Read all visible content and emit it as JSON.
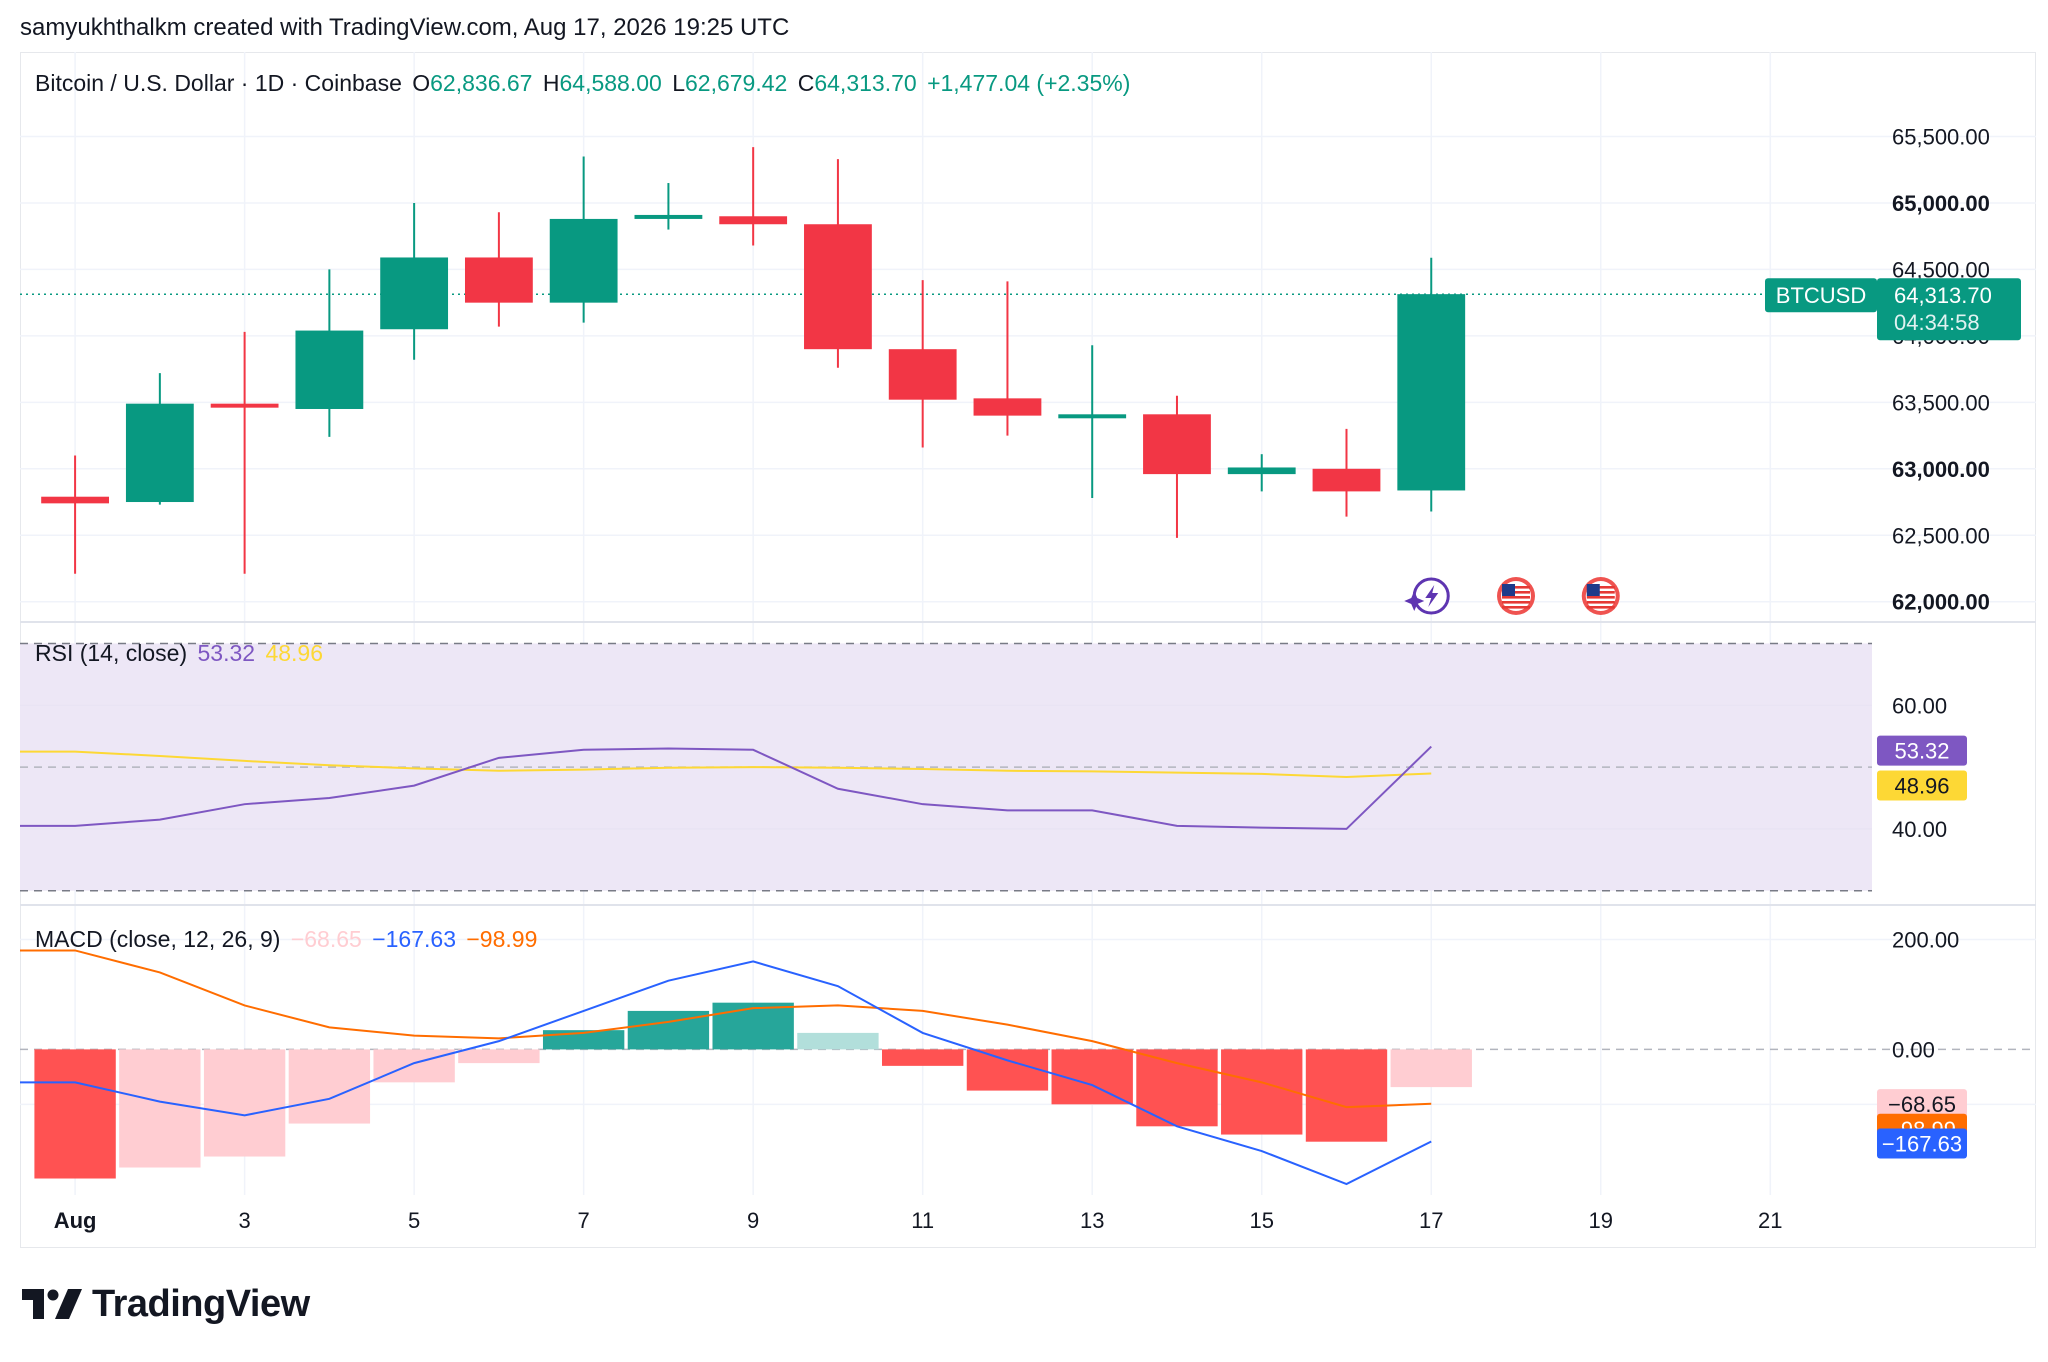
{
  "caption": "samyukhthalkm created with TradingView.com, Aug 17, 2026 19:25 UTC",
  "brand": {
    "logo_text": "TradingView",
    "logo_icon": "tradingview-logo-icon"
  },
  "colors": {
    "up": "#089981",
    "down": "#f23645",
    "rsi": "#7e57c2",
    "rsi_ma": "#fdd835",
    "macd": "#2962ff",
    "signal": "#ff6d00",
    "hist_up_strong": "#26a69a",
    "hist_up_weak": "#b2dfdb",
    "hist_down_strong": "#ff5252",
    "hist_down_weak": "#ffcdd2",
    "rsi_band": "#ede7f6"
  },
  "legend": {
    "symbol": "Bitcoin / U.S. Dollar · 1D · Coinbase",
    "o_label": "O",
    "o_value": "62,836.67",
    "h_label": "H",
    "h_value": "64,588.00",
    "l_label": "L",
    "l_value": "62,679.42",
    "c_label": "C",
    "c_value": "64,313.70",
    "change": "+1,477.04 (+2.35%)"
  },
  "price_tag": {
    "symbol": "BTCUSD",
    "price": "64,313.70",
    "countdown": "04:34:58"
  },
  "rsi_legend": {
    "title": "RSI (14, close)",
    "rsi": "53.32",
    "ma": "48.96"
  },
  "macd_legend": {
    "title": "MACD (close, 12, 26, 9)",
    "hist": "−68.65",
    "macd": "−167.63",
    "signal": "−98.99"
  },
  "event_icons": [
    "lightning-event-icon",
    "us-flag-event-icon",
    "us-flag-event-icon"
  ],
  "chart_data": [
    {
      "type": "candlestick",
      "x_ticks": [
        "Aug",
        "3",
        "5",
        "7",
        "9",
        "11",
        "13",
        "15",
        "17",
        "19",
        "21"
      ],
      "x_tick_days": [
        1,
        3,
        5,
        7,
        9,
        11,
        13,
        15,
        17,
        19,
        21
      ],
      "y_ticks": [
        "65,500.00",
        "65,000.00",
        "64,500.00",
        "64,000.00",
        "63,500.00",
        "63,000.00",
        "62,500.00",
        "62,000.00"
      ],
      "y_tick_values": [
        65500,
        65000,
        64500,
        64000,
        63500,
        63000,
        62500,
        62000
      ],
      "y_ticks_bold": [
        65000,
        63000,
        62000
      ],
      "ylim": [
        61900,
        65850
      ],
      "xlim": [
        0.35,
        22.2
      ],
      "candles": [
        {
          "day": 1,
          "o": 62790,
          "h": 63100,
          "l": 62210,
          "c": 62740
        },
        {
          "day": 2,
          "o": 62750,
          "h": 63720,
          "l": 62730,
          "c": 63490
        },
        {
          "day": 3,
          "o": 63490,
          "h": 64030,
          "l": 62210,
          "c": 63460
        },
        {
          "day": 4,
          "o": 63450,
          "h": 64500,
          "l": 63240,
          "c": 64040
        },
        {
          "day": 5,
          "o": 64050,
          "h": 65000,
          "l": 63820,
          "c": 64590
        },
        {
          "day": 6,
          "o": 64590,
          "h": 64930,
          "l": 64070,
          "c": 64250
        },
        {
          "day": 7,
          "o": 64250,
          "h": 65350,
          "l": 64100,
          "c": 64880
        },
        {
          "day": 8,
          "o": 64890,
          "h": 65150,
          "l": 64800,
          "c": 64910
        },
        {
          "day": 9,
          "o": 64900,
          "h": 65420,
          "l": 64680,
          "c": 64840
        },
        {
          "day": 10,
          "o": 64840,
          "h": 65330,
          "l": 63760,
          "c": 63900
        },
        {
          "day": 11,
          "o": 63900,
          "h": 64420,
          "l": 63160,
          "c": 63520
        },
        {
          "day": 12,
          "o": 63530,
          "h": 64410,
          "l": 63250,
          "c": 63400
        },
        {
          "day": 13,
          "o": 63400,
          "h": 63930,
          "l": 62780,
          "c": 63410
        },
        {
          "day": 14,
          "o": 63410,
          "h": 63550,
          "l": 62480,
          "c": 62960
        },
        {
          "day": 15,
          "o": 62960,
          "h": 63110,
          "l": 62830,
          "c": 63010
        },
        {
          "day": 16,
          "o": 63000,
          "h": 63300,
          "l": 62640,
          "c": 62830
        },
        {
          "day": 17,
          "o": 62837,
          "h": 64588,
          "l": 62679,
          "c": 64314
        }
      ],
      "last_price": 64313.7
    },
    {
      "type": "line",
      "name": "RSI (14, close)",
      "y_ticks": [
        "60.00",
        "40.00"
      ],
      "y_tick_values": [
        60,
        40
      ],
      "band": [
        30,
        70
      ],
      "midline": 50,
      "ylim": [
        28.5,
        72.5
      ],
      "x": [
        1,
        2,
        3,
        4,
        5,
        6,
        7,
        8,
        9,
        10,
        11,
        12,
        13,
        14,
        15,
        16,
        17
      ],
      "series": [
        {
          "name": "RSI",
          "values": [
            40.5,
            41.5,
            44.0,
            45.0,
            47.0,
            51.5,
            52.8,
            53.0,
            52.8,
            46.5,
            44.0,
            43.0,
            43.0,
            40.5,
            40.2,
            40.0,
            53.32
          ]
        },
        {
          "name": "RSI MA",
          "values": [
            52.5,
            51.8,
            51.0,
            50.3,
            49.8,
            49.4,
            49.6,
            49.9,
            50.0,
            49.9,
            49.7,
            49.4,
            49.3,
            49.1,
            48.9,
            48.4,
            48.96
          ]
        }
      ]
    },
    {
      "type": "bar+line",
      "name": "MACD (close, 12, 26, 9)",
      "y_ticks": [
        "200.00",
        "0.00"
      ],
      "y_tick_values": [
        200,
        0
      ],
      "ylim": [
        -265,
        250
      ],
      "x": [
        1,
        2,
        3,
        4,
        5,
        6,
        7,
        8,
        9,
        10,
        11,
        12,
        13,
        14,
        15,
        16,
        17
      ],
      "histogram": [
        -235,
        -215,
        -195,
        -135,
        -60,
        -25,
        35,
        70,
        85,
        30,
        -30,
        -75,
        -100,
        -140,
        -155,
        -168,
        -68.65
      ],
      "macd": [
        -60,
        -95,
        -120,
        -90,
        -25,
        15,
        70,
        125,
        160,
        115,
        30,
        -20,
        -65,
        -140,
        -185,
        -245,
        -167.63
      ],
      "signal": [
        180,
        140,
        80,
        40,
        25,
        20,
        30,
        50,
        75,
        80,
        70,
        45,
        15,
        -25,
        -60,
        -105,
        -98.99
      ]
    }
  ]
}
